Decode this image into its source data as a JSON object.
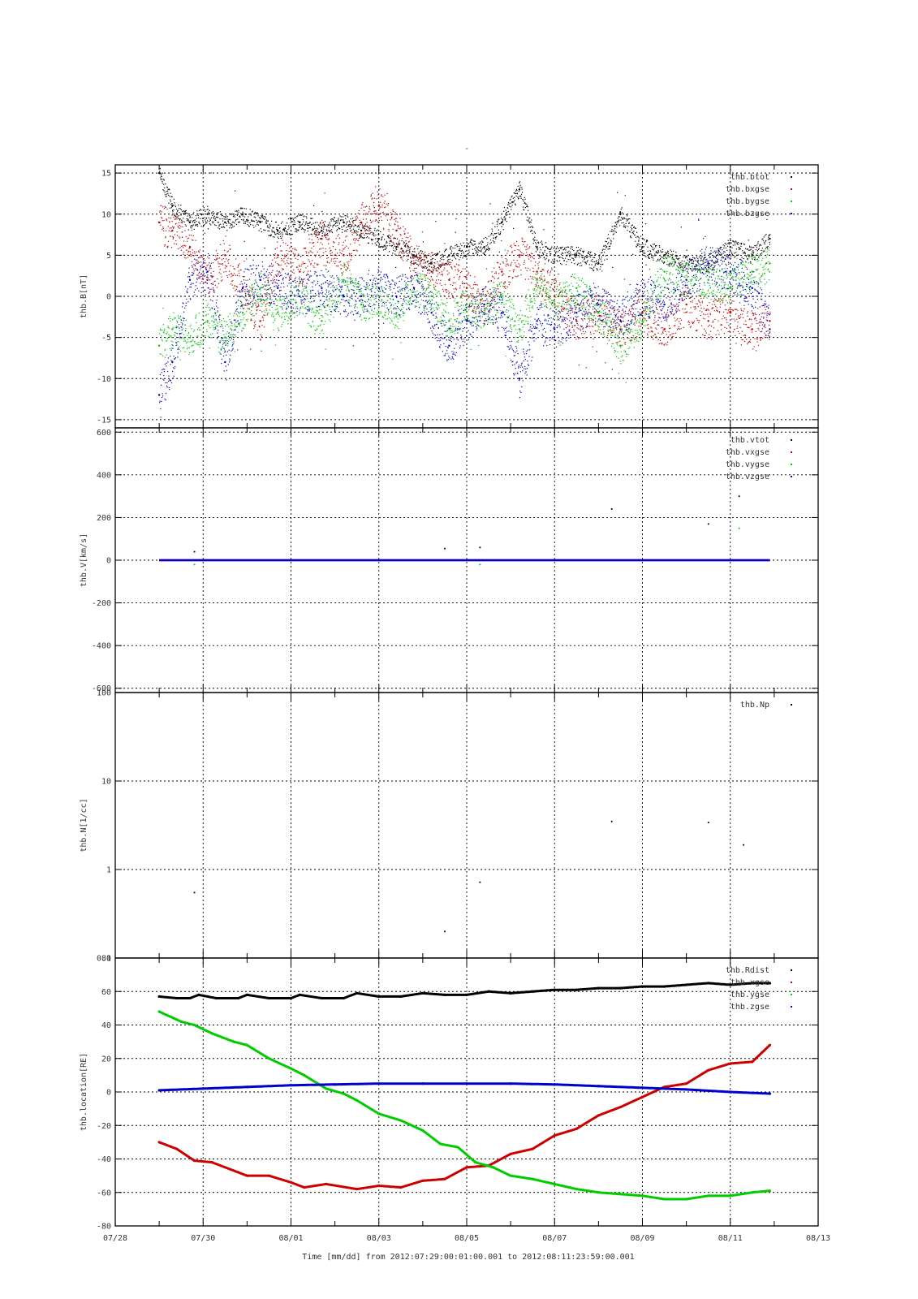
{
  "figure": {
    "top_mark": "-",
    "footer": "Time [mm/dd]  from 2012:07:29:00:01:00.001  to  2012:08:11:23:59:00.001"
  },
  "colors": {
    "black": "#000000",
    "red": "#cc0000",
    "green": "#00cc00",
    "blue": "#0000cc"
  },
  "chart_data": [
    {
      "type": "scatter",
      "ylabel": "thb.B[nT]",
      "ylim": [
        -16,
        16
      ],
      "yticks": [
        15,
        10,
        5,
        0,
        -5,
        -10,
        -15
      ],
      "xlim": [
        0,
        16
      ],
      "xtick_labels": [
        "07/28",
        "07/30",
        "08/01",
        "08/03",
        "08/05",
        "08/07",
        "08/09",
        "08/11",
        "08/13"
      ],
      "legend": "top-right",
      "grid": true,
      "series": [
        {
          "name": "thb.btot",
          "color": "#000000",
          "x": [
            1.0,
            1.3,
            1.7,
            2.1,
            2.5,
            2.9,
            3.3,
            3.7,
            4.2,
            4.7,
            5.2,
            5.6,
            6.0,
            6.4,
            6.8,
            7.2,
            7.6,
            8.0,
            8.4,
            8.8,
            9.2,
            9.6,
            10.0,
            10.5,
            11.0,
            11.5,
            12.0,
            12.5,
            13.0,
            13.5,
            14.0,
            14.5,
            14.9
          ],
          "y": [
            15,
            11,
            9,
            10,
            9,
            10,
            9,
            8,
            9,
            8,
            9,
            8,
            7,
            6,
            5,
            4,
            5,
            6,
            6,
            9,
            13,
            6,
            5,
            5,
            4,
            10,
            6,
            5,
            4,
            4,
            6,
            5,
            7
          ]
        },
        {
          "name": "thb.bxgse",
          "color": "#cc0000",
          "x": [
            1.0,
            1.3,
            1.7,
            2.1,
            2.5,
            2.9,
            3.3,
            3.7,
            4.2,
            4.7,
            5.2,
            5.6,
            6.0,
            6.4,
            6.8,
            7.2,
            7.6,
            8.0,
            8.4,
            8.8,
            9.2,
            9.6,
            10.0,
            10.5,
            11.0,
            11.5,
            12.0,
            12.5,
            13.0,
            13.5,
            14.0,
            14.5,
            14.9
          ],
          "y": [
            9,
            8,
            6,
            2,
            5,
            1,
            -3,
            5,
            3,
            7,
            5,
            9,
            11,
            8,
            4,
            3,
            2,
            1,
            -1,
            3,
            5,
            3,
            0,
            -3,
            -2,
            -4,
            -2,
            -4,
            -1,
            -3,
            -2,
            -4,
            -3
          ]
        },
        {
          "name": "thb.bygse",
          "color": "#00cc00",
          "x": [
            1.0,
            1.3,
            1.7,
            2.1,
            2.5,
            2.9,
            3.3,
            3.7,
            4.2,
            4.7,
            5.2,
            5.6,
            6.0,
            6.4,
            6.8,
            7.2,
            7.6,
            8.0,
            8.4,
            8.8,
            9.2,
            9.6,
            10.0,
            10.5,
            11.0,
            11.5,
            12.0,
            12.5,
            13.0,
            13.5,
            14.0,
            14.5,
            14.9
          ],
          "y": [
            -6,
            -4,
            -5,
            -3,
            -5,
            -2,
            1,
            -2,
            0,
            -3,
            2,
            -1,
            0,
            -2,
            1,
            0,
            -3,
            -1,
            -2,
            0,
            -4,
            2,
            -1,
            1,
            -2,
            -6,
            -3,
            3,
            2,
            2,
            1,
            3,
            4
          ]
        },
        {
          "name": "thb.bzgse",
          "color": "#0000cc",
          "x": [
            1.0,
            1.3,
            1.7,
            2.1,
            2.5,
            2.9,
            3.3,
            3.7,
            4.2,
            4.7,
            5.2,
            5.6,
            6.0,
            6.4,
            6.8,
            7.2,
            7.6,
            8.0,
            8.4,
            8.8,
            9.2,
            9.6,
            10.0,
            10.5,
            11.0,
            11.5,
            12.0,
            12.5,
            13.0,
            13.5,
            14.0,
            14.5,
            14.9
          ],
          "y": [
            -12,
            -8,
            2,
            3,
            -8,
            1,
            2,
            1,
            0,
            1,
            0,
            0,
            1,
            0,
            1,
            -2,
            -6,
            -3,
            -1,
            -2,
            -10,
            -3,
            -4,
            -2,
            -1,
            -3,
            0,
            -1,
            2,
            4,
            3,
            1,
            -4
          ]
        }
      ]
    },
    {
      "type": "scatter",
      "ylabel": "thb.V[km/s]",
      "ylim": [
        -620,
        620
      ],
      "yticks": [
        600,
        400,
        200,
        0,
        -200,
        -400,
        -600
      ],
      "xlim": [
        0,
        16
      ],
      "legend": "top-right",
      "grid": true,
      "series": [
        {
          "name": "thb.vtot",
          "color": "#000000",
          "x": [
            1.8,
            7.5,
            8.3,
            11.3,
            13.5,
            14.2
          ],
          "y": [
            40,
            55,
            60,
            240,
            170,
            300
          ]
        },
        {
          "name": "thb.vxgse",
          "color": "#cc0000",
          "x": [
            1.0,
            14.9
          ],
          "y": [
            0,
            0
          ]
        },
        {
          "name": "thb.vygse",
          "color": "#00cc00",
          "x": [
            1.8,
            8.3,
            14.2
          ],
          "y": [
            -20,
            -20,
            150
          ]
        },
        {
          "name": "thb.vzgse",
          "color": "#0000cc",
          "x": [
            1.0,
            14.9
          ],
          "y": [
            0,
            0
          ]
        }
      ]
    },
    {
      "type": "scatter",
      "ylabel": "thb.N[1/cc]",
      "yscale": "log",
      "ylim": [
        0.1,
        100
      ],
      "yticks": [
        100,
        10,
        1,
        0.1
      ],
      "xlim": [
        0,
        16
      ],
      "legend": "top-right",
      "grid": true,
      "series": [
        {
          "name": "thb.Np",
          "color": "#000000",
          "x": [
            1.8,
            7.5,
            8.3,
            11.3,
            13.5,
            14.3
          ],
          "y": [
            0.55,
            0.2,
            0.72,
            3.5,
            3.4,
            1.9
          ]
        }
      ]
    },
    {
      "type": "line",
      "ylabel": "thb.location[RE]",
      "ylim": [
        -80,
        80
      ],
      "yticks": [
        80,
        60,
        40,
        20,
        0,
        -20,
        -40,
        -60,
        -80
      ],
      "xlim": [
        0,
        16
      ],
      "legend": "top-right",
      "grid": true,
      "series": [
        {
          "name": "thb.Rdist",
          "color": "#000000",
          "x": [
            1.0,
            1.4,
            1.7,
            1.9,
            2.3,
            2.8,
            3.0,
            3.5,
            4.0,
            4.2,
            4.7,
            5.2,
            5.5,
            6.0,
            6.5,
            7.0,
            7.5,
            8.0,
            8.5,
            9.0,
            9.5,
            10.0,
            10.5,
            11.0,
            11.5,
            12.0,
            12.5,
            13.0,
            13.5,
            14.0,
            14.5,
            14.9
          ],
          "y": [
            57,
            56,
            56,
            58,
            56,
            56,
            58,
            56,
            56,
            58,
            56,
            56,
            59,
            57,
            57,
            59,
            58,
            58,
            60,
            59,
            60,
            61,
            61,
            62,
            62,
            63,
            63,
            64,
            65,
            64,
            65,
            65
          ]
        },
        {
          "name": "thb.xgse",
          "color": "#cc0000",
          "x": [
            1.0,
            1.4,
            1.8,
            2.2,
            2.8,
            3.0,
            3.5,
            4.0,
            4.3,
            4.8,
            5.5,
            6.0,
            6.5,
            7.0,
            7.5,
            8.0,
            8.5,
            9.0,
            9.5,
            10.0,
            10.5,
            11.0,
            11.5,
            12.0,
            12.5,
            13.0,
            13.5,
            14.0,
            14.5,
            14.9
          ],
          "y": [
            -30,
            -34,
            -41,
            -42,
            -48,
            -50,
            -50,
            -54,
            -57,
            -55,
            -58,
            -56,
            -57,
            -53,
            -52,
            -45,
            -44,
            -37,
            -34,
            -26,
            -22,
            -14,
            -9,
            -3,
            3,
            5,
            13,
            17,
            18,
            28
          ]
        },
        {
          "name": "thb.ygse",
          "color": "#00cc00",
          "x": [
            1.0,
            1.5,
            1.8,
            2.2,
            2.7,
            3.0,
            3.5,
            4.0,
            4.3,
            4.8,
            5.2,
            5.5,
            6.0,
            6.5,
            7.0,
            7.4,
            7.8,
            8.2,
            8.6,
            9.0,
            9.5,
            10.0,
            10.5,
            11.0,
            11.5,
            12.0,
            12.5,
            13.0,
            13.5,
            14.0,
            14.5,
            14.9
          ],
          "y": [
            48,
            42,
            40,
            35,
            30,
            28,
            20,
            14,
            10,
            2,
            -1,
            -5,
            -13,
            -17,
            -23,
            -31,
            -33,
            -42,
            -45,
            -50,
            -52,
            -55,
            -58,
            -60,
            -61,
            -62,
            -64,
            -64,
            -62,
            -62,
            -60,
            -59
          ]
        },
        {
          "name": "thb.zgse",
          "color": "#0000cc",
          "x": [
            1.0,
            2.0,
            3.0,
            4.0,
            5.0,
            6.0,
            7.0,
            8.0,
            9.0,
            10.0,
            11.0,
            12.0,
            13.0,
            14.0,
            14.9
          ],
          "y": [
            1,
            2,
            3,
            4,
            4.5,
            5,
            5,
            5,
            5,
            4.5,
            3.5,
            2.5,
            1.5,
            0,
            -1
          ]
        }
      ]
    }
  ]
}
